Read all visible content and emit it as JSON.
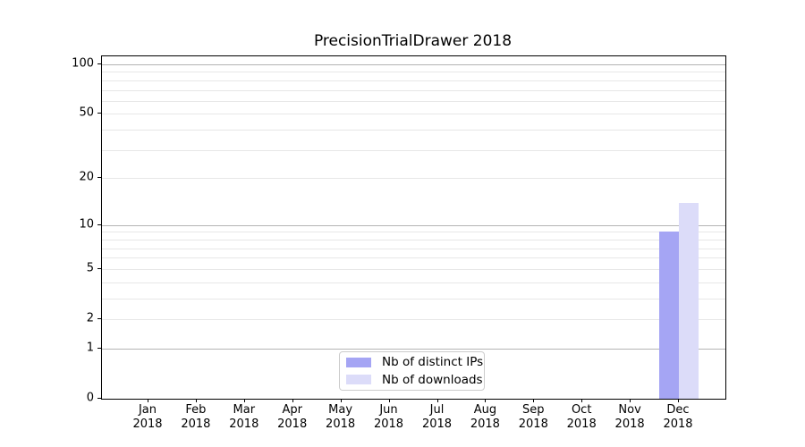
{
  "chart_data": {
    "type": "bar",
    "title": "PrecisionTrialDrawer 2018",
    "categories": [
      "Jan",
      "Feb",
      "Mar",
      "Apr",
      "May",
      "Jun",
      "Jul",
      "Aug",
      "Sep",
      "Oct",
      "Nov",
      "Dec"
    ],
    "category_year": "2018",
    "series": [
      {
        "name": "Nb of distinct IPs",
        "color": "#a5a5f4",
        "values": [
          0,
          0,
          0,
          0,
          0,
          0,
          0,
          0,
          0,
          0,
          0,
          9
        ]
      },
      {
        "name": "Nb of downloads",
        "color": "#dcdcf9",
        "values": [
          0,
          0,
          0,
          0,
          0,
          0,
          0,
          0,
          0,
          0,
          0,
          14
        ]
      }
    ],
    "y_axis": {
      "scale": "log10(1+x)",
      "tick_values": [
        0,
        1,
        2,
        5,
        10,
        20,
        50,
        100
      ],
      "tick_labels": [
        "0",
        "1",
        "2",
        "5",
        "10",
        "20",
        "50",
        "100"
      ],
      "ymax": 112
    },
    "x_axis": {
      "tick_count": 12
    },
    "grid": {
      "major_values": [
        1,
        10,
        100
      ],
      "minor_values": [
        2,
        3,
        4,
        5,
        6,
        7,
        8,
        9,
        20,
        30,
        40,
        50,
        60,
        70,
        80,
        90
      ]
    },
    "legend": {
      "position": "lower center"
    }
  }
}
